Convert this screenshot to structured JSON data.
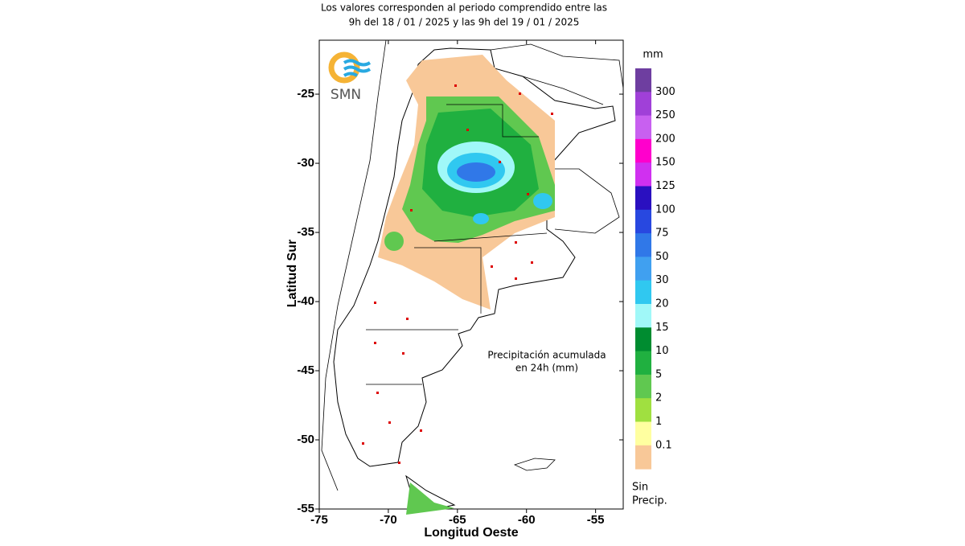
{
  "header": {
    "lines": [
      "Los valores corresponden al periodo comprendido entre las",
      "9h del 18 / 01 / 2025  y las 9h del 19 / 01 / 2025"
    ]
  },
  "logo": {
    "text": "SMN"
  },
  "map": {
    "xlabel": "Longitud Oeste",
    "ylabel": "Latitud Sur",
    "xlim": [
      -75,
      -53
    ],
    "ylim": [
      -55,
      -21.1
    ],
    "xticks": [
      -75,
      -70,
      -65,
      -60,
      -55
    ],
    "yticks": [
      -25,
      -30,
      -35,
      -40,
      -45,
      -50,
      -55
    ],
    "annotation": [
      "Precipitación acumulada",
      "en 24h (mm)"
    ]
  },
  "legend": {
    "title": "mm",
    "labels": [
      300,
      250,
      200,
      150,
      125,
      100,
      75,
      50,
      30,
      20,
      15,
      10,
      5,
      2,
      1,
      0.1
    ],
    "colors": [
      "#6e3ea0",
      "#a040d8",
      "#c860f0",
      "#ff00cc",
      "#d030f0",
      "#2a10c0",
      "#2848e0",
      "#3078e8",
      "#40a0f0",
      "#30c8f0",
      "#a0f8f8",
      "#008c30",
      "#20b040",
      "#60c850",
      "#a0e040",
      "#ffffa0",
      "#f8c898"
    ],
    "no_precip": [
      "Sin",
      "Precip."
    ]
  }
}
